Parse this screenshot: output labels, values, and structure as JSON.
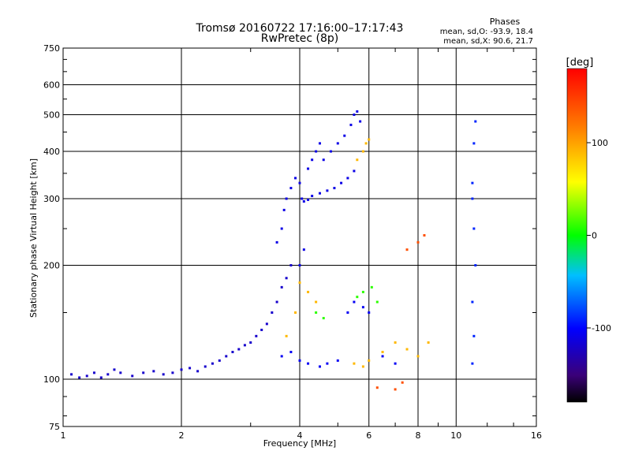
{
  "chart_data": {
    "type": "scatter",
    "title": "Tromsø 20160722 17:16:00–17:17:43",
    "subtitle": "RwPretec (8p)",
    "xlabel": "Frequency [MHz]",
    "ylabel": "Stationary phase Virtual Height [km]",
    "x_scale": "log",
    "y_scale": "log",
    "xlim": [
      1,
      16
    ],
    "ylim": [
      75,
      750
    ],
    "x_ticks": [
      1,
      2,
      4,
      6,
      8,
      10,
      16
    ],
    "y_ticks": [
      75,
      100,
      200,
      300,
      400,
      500,
      600,
      750
    ],
    "grid": true,
    "stats": {
      "title": "Phases",
      "line_o": "mean, sd,O: -93.9, 18.4",
      "line_x": "mean, sd,X:  90.6, 21.7"
    },
    "colorbar": {
      "label": "[deg]",
      "ticks": [
        100,
        0,
        -100
      ],
      "range": [
        -180,
        180
      ],
      "colormap": "rainbow"
    },
    "clusters": [
      {
        "phase": -120,
        "points": [
          [
            1.05,
            103
          ],
          [
            1.1,
            101
          ],
          [
            1.15,
            102
          ],
          [
            1.2,
            104
          ],
          [
            1.25,
            101
          ],
          [
            1.3,
            103
          ],
          [
            1.35,
            106
          ],
          [
            1.4,
            104
          ],
          [
            1.5,
            102
          ],
          [
            1.6,
            104
          ],
          [
            1.7,
            105
          ],
          [
            1.8,
            103
          ],
          [
            1.9,
            104
          ],
          [
            2.0,
            106
          ],
          [
            2.1,
            107
          ],
          [
            2.2,
            105
          ],
          [
            2.3,
            108
          ],
          [
            2.4,
            110
          ],
          [
            2.5,
            112
          ],
          [
            2.6,
            115
          ],
          [
            2.7,
            118
          ],
          [
            2.8,
            120
          ],
          [
            2.9,
            123
          ],
          [
            3.0,
            125
          ],
          [
            3.1,
            130
          ],
          [
            3.2,
            135
          ],
          [
            3.3,
            140
          ],
          [
            3.4,
            150
          ],
          [
            3.5,
            160
          ],
          [
            3.6,
            175
          ],
          [
            3.7,
            185
          ],
          [
            3.8,
            200
          ]
        ]
      },
      {
        "phase": -110,
        "points": [
          [
            3.5,
            230
          ],
          [
            3.6,
            250
          ],
          [
            3.65,
            280
          ],
          [
            3.7,
            300
          ],
          [
            3.8,
            320
          ],
          [
            3.9,
            340
          ],
          [
            4.0,
            330
          ],
          [
            4.05,
            300
          ],
          [
            4.1,
            295
          ],
          [
            4.2,
            298
          ],
          [
            4.3,
            305
          ],
          [
            4.5,
            310
          ],
          [
            4.7,
            315
          ],
          [
            4.9,
            320
          ],
          [
            5.1,
            330
          ],
          [
            5.3,
            340
          ],
          [
            5.5,
            355
          ]
        ]
      },
      {
        "phase": -110,
        "points": [
          [
            4.0,
            200
          ],
          [
            4.1,
            220
          ],
          [
            4.2,
            360
          ],
          [
            4.3,
            380
          ],
          [
            4.4,
            400
          ],
          [
            4.5,
            420
          ],
          [
            4.6,
            380
          ],
          [
            4.8,
            400
          ],
          [
            5.0,
            420
          ],
          [
            5.2,
            440
          ],
          [
            5.4,
            470
          ],
          [
            5.5,
            500
          ],
          [
            5.6,
            510
          ],
          [
            5.7,
            480
          ]
        ]
      },
      {
        "phase": -105,
        "points": [
          [
            3.6,
            115
          ],
          [
            3.8,
            118
          ],
          [
            4.0,
            112
          ],
          [
            4.2,
            110
          ],
          [
            4.5,
            108
          ],
          [
            4.7,
            110
          ],
          [
            5.0,
            112
          ],
          [
            5.3,
            150
          ],
          [
            5.5,
            160
          ],
          [
            5.8,
            155
          ],
          [
            6.0,
            150
          ],
          [
            6.5,
            115
          ],
          [
            7.0,
            110
          ]
        ]
      },
      {
        "phase": 90,
        "points": [
          [
            3.7,
            130
          ],
          [
            3.9,
            150
          ],
          [
            4.0,
            180
          ],
          [
            4.2,
            170
          ],
          [
            4.4,
            160
          ],
          [
            5.5,
            110
          ],
          [
            5.8,
            108
          ],
          [
            6.0,
            112
          ],
          [
            6.5,
            118
          ],
          [
            7.0,
            125
          ],
          [
            7.5,
            120
          ],
          [
            8.0,
            115
          ],
          [
            8.5,
            125
          ],
          [
            5.6,
            380
          ],
          [
            5.8,
            400
          ],
          [
            5.9,
            420
          ],
          [
            6.0,
            430
          ]
        ]
      },
      {
        "phase": 10,
        "points": [
          [
            4.4,
            150
          ],
          [
            4.6,
            145
          ],
          [
            5.6,
            165
          ],
          [
            5.8,
            170
          ],
          [
            6.1,
            175
          ],
          [
            6.3,
            160
          ]
        ]
      },
      {
        "phase": 140,
        "points": [
          [
            6.3,
            95
          ],
          [
            7.0,
            94
          ],
          [
            7.3,
            98
          ],
          [
            7.5,
            220
          ],
          [
            8.0,
            230
          ],
          [
            8.3,
            240
          ]
        ]
      },
      {
        "phase": -90,
        "points": [
          [
            11.0,
            330
          ],
          [
            11.0,
            300
          ],
          [
            11.1,
            250
          ],
          [
            11.2,
            200
          ],
          [
            11.0,
            160
          ],
          [
            11.1,
            130
          ],
          [
            11.0,
            110
          ],
          [
            11.1,
            420
          ],
          [
            11.2,
            480
          ]
        ]
      }
    ]
  }
}
